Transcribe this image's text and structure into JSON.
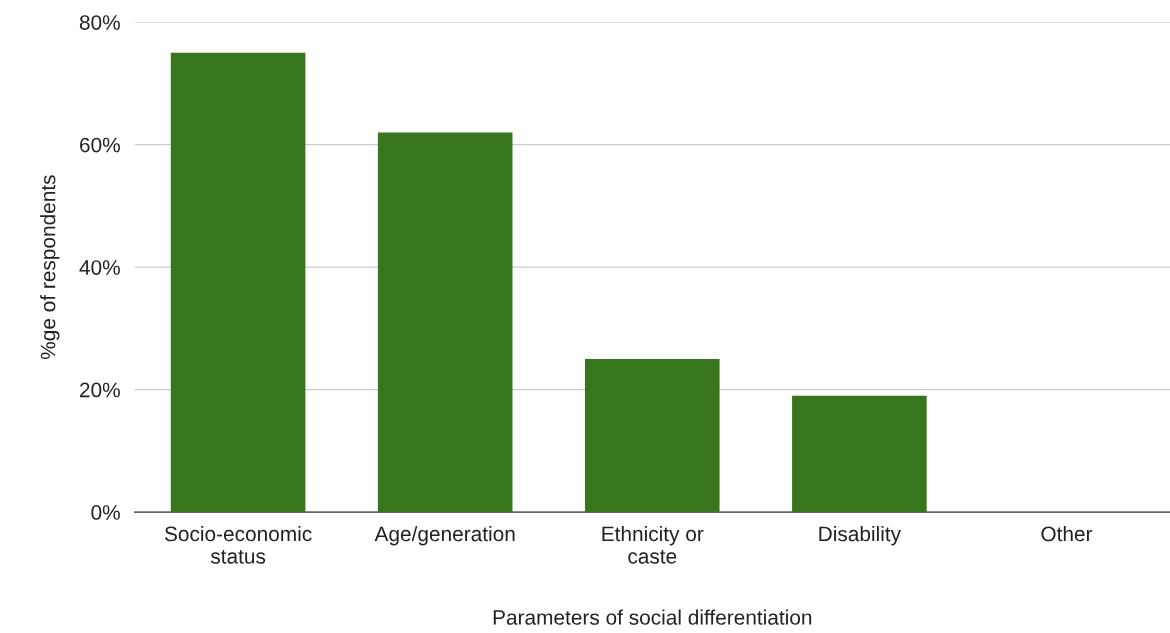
{
  "chart_data": {
    "type": "bar",
    "xlabel": "Parameters of social differentiation",
    "ylabel": "%ge of respondents",
    "categories": [
      "Socio-economic\nstatus",
      "Age/generation",
      "Ethnicity or\ncaste",
      "Disability",
      "Other"
    ],
    "values": [
      75,
      62,
      25,
      19,
      0
    ],
    "color": "#38761d",
    "ylim": [
      0,
      80
    ],
    "yticks": [
      {
        "value": 0,
        "label": "0%"
      },
      {
        "value": 20,
        "label": "20%"
      },
      {
        "value": 40,
        "label": "40%"
      },
      {
        "value": 60,
        "label": "60%"
      },
      {
        "value": 80,
        "label": "80%"
      }
    ],
    "grid": "y",
    "legend": false
  }
}
